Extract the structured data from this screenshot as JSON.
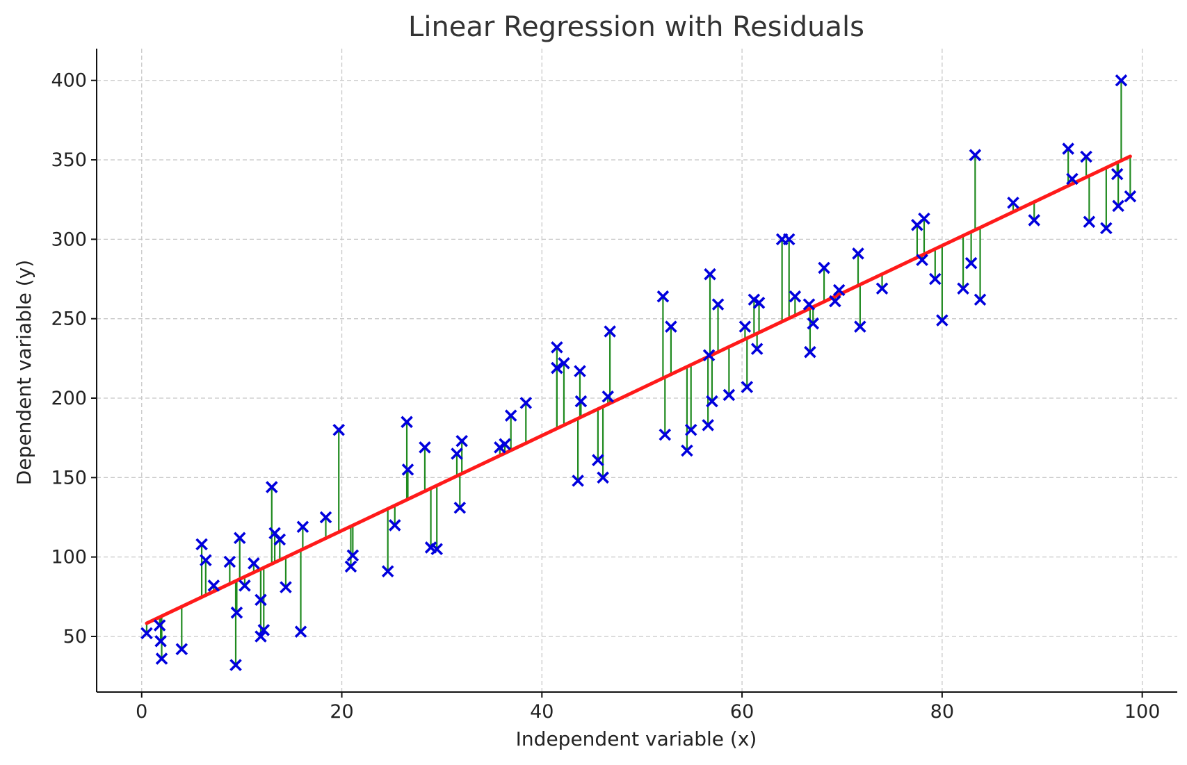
{
  "chart_data": {
    "type": "scatter",
    "title": "Linear Regression with Residuals",
    "xlabel": "Independent variable (x)",
    "ylabel": "Dependent variable (y)",
    "xlim": [
      -4.5,
      103.5
    ],
    "ylim": [
      15,
      420
    ],
    "xticks": [
      0,
      20,
      40,
      60,
      80,
      100
    ],
    "yticks": [
      50,
      100,
      150,
      200,
      250,
      300,
      350,
      400
    ],
    "grid": true,
    "colors": {
      "points": "#0000dd",
      "residuals": "#1f8a1f",
      "fit": "#ff1a1a"
    },
    "fit_line": {
      "slope": 2.99,
      "intercept": 56.8,
      "x_range": [
        0.5,
        98.8
      ]
    },
    "points": [
      [
        0.5,
        52
      ],
      [
        1.8,
        57
      ],
      [
        1.9,
        47
      ],
      [
        2.0,
        36
      ],
      [
        4.0,
        42
      ],
      [
        6.0,
        108
      ],
      [
        6.4,
        98
      ],
      [
        7.2,
        82
      ],
      [
        8.8,
        97
      ],
      [
        9.5,
        65
      ],
      [
        9.4,
        32
      ],
      [
        9.8,
        112
      ],
      [
        10.3,
        82
      ],
      [
        11.2,
        96
      ],
      [
        11.9,
        73
      ],
      [
        11.9,
        50
      ],
      [
        12.2,
        54
      ],
      [
        13.0,
        144
      ],
      [
        13.3,
        115
      ],
      [
        13.8,
        111
      ],
      [
        14.4,
        81
      ],
      [
        15.9,
        53
      ],
      [
        16.1,
        119
      ],
      [
        18.4,
        125
      ],
      [
        19.7,
        180
      ],
      [
        20.9,
        94
      ],
      [
        21.1,
        101
      ],
      [
        24.6,
        91
      ],
      [
        25.3,
        120
      ],
      [
        26.5,
        185
      ],
      [
        26.6,
        155
      ],
      [
        28.3,
        169
      ],
      [
        28.9,
        106
      ],
      [
        29.5,
        105
      ],
      [
        31.5,
        165
      ],
      [
        31.8,
        131
      ],
      [
        32.0,
        173
      ],
      [
        35.8,
        169
      ],
      [
        36.3,
        171
      ],
      [
        36.9,
        189
      ],
      [
        38.4,
        197
      ],
      [
        41.5,
        219
      ],
      [
        41.5,
        232
      ],
      [
        42.2,
        222
      ],
      [
        43.6,
        148
      ],
      [
        43.8,
        217
      ],
      [
        43.9,
        198
      ],
      [
        45.6,
        161
      ],
      [
        46.1,
        150
      ],
      [
        46.6,
        201
      ],
      [
        46.8,
        242
      ],
      [
        52.1,
        264
      ],
      [
        52.3,
        177
      ],
      [
        52.9,
        245
      ],
      [
        54.5,
        167
      ],
      [
        54.9,
        180
      ],
      [
        56.6,
        183
      ],
      [
        56.7,
        227
      ],
      [
        56.8,
        278
      ],
      [
        57.0,
        198
      ],
      [
        57.6,
        259
      ],
      [
        58.7,
        202
      ],
      [
        60.3,
        245
      ],
      [
        60.5,
        207
      ],
      [
        61.2,
        262
      ],
      [
        61.5,
        231
      ],
      [
        61.7,
        260
      ],
      [
        64.0,
        300
      ],
      [
        64.7,
        300
      ],
      [
        65.3,
        264
      ],
      [
        66.7,
        259
      ],
      [
        66.8,
        229
      ],
      [
        67.1,
        247
      ],
      [
        68.2,
        282
      ],
      [
        69.3,
        261
      ],
      [
        69.7,
        268
      ],
      [
        71.6,
        291
      ],
      [
        71.8,
        245
      ],
      [
        74.0,
        269
      ],
      [
        77.5,
        309
      ],
      [
        78.0,
        287
      ],
      [
        78.2,
        313
      ],
      [
        79.3,
        275
      ],
      [
        80.0,
        249
      ],
      [
        82.1,
        269
      ],
      [
        82.9,
        285
      ],
      [
        83.3,
        353
      ],
      [
        83.8,
        262
      ],
      [
        87.1,
        323
      ],
      [
        89.2,
        312
      ],
      [
        92.6,
        357
      ],
      [
        93.0,
        338
      ],
      [
        94.4,
        352
      ],
      [
        94.7,
        311
      ],
      [
        96.4,
        307
      ],
      [
        97.5,
        341
      ],
      [
        97.6,
        321
      ],
      [
        97.9,
        400
      ],
      [
        98.8,
        327
      ]
    ]
  }
}
